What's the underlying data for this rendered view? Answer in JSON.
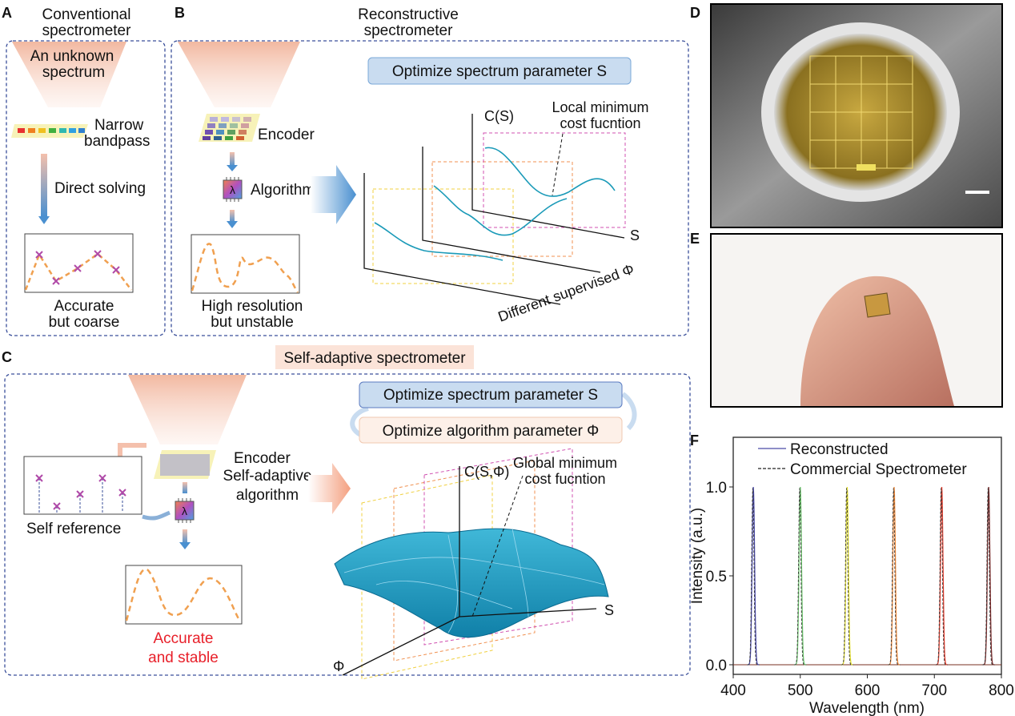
{
  "panels": {
    "A": {
      "letter": "A",
      "title_1": "Conventional",
      "title_2": "spectrometer",
      "source_1": "An unknown",
      "source_2": "spectrum",
      "filter_1": "Narrow",
      "filter_2": "bandpass",
      "step": "Direct solving",
      "result_1": "Accurate",
      "result_2": "but coarse"
    },
    "B": {
      "letter": "B",
      "title_1": "Reconstructive",
      "title_2": "spectrometer",
      "encoder": "Encoder",
      "algorithm": "Algorithm",
      "result_1": "High resolution",
      "result_2": "but unstable",
      "optimize": "Optimize spectrum parameter S",
      "axis_c": "C(S)",
      "axis_s": "S",
      "axis_phi": "Different supervised Φ",
      "note_1": "Local minimum",
      "note_2": "cost fucntion"
    },
    "C": {
      "letter": "C",
      "title": "Self-adaptive spectrometer",
      "encoder": "Encoder",
      "algorithm_1": "Self-adaptive",
      "algorithm_2": "algorithm",
      "reference": "Self reference",
      "result_1": "Accurate",
      "result_2": "and stable",
      "optimize_s": "Optimize spectrum parameter S",
      "optimize_phi": "Optimize algorithm parameter Φ",
      "axis_c": "C(S,Φ)",
      "axis_s": "S",
      "axis_phi": "Φ",
      "note_1": "Global minimum",
      "note_2": "cost fucntion"
    },
    "D": {
      "letter": "D"
    },
    "E": {
      "letter": "E"
    },
    "F": {
      "letter": "F"
    }
  },
  "colors": {
    "accent_blue": "#c9dcf0",
    "accent_peach": "#fbe3d8",
    "dashed_border": "#3a4f9a",
    "result_red": "#e8202a",
    "curve_orange": "#f0a050",
    "marker_purple": "#b04aa8"
  },
  "chart_data": {
    "type": "line",
    "xlabel": "Wavelength (nm)",
    "ylabel": "Intensity (a.u.)",
    "xlim": [
      400,
      800
    ],
    "ylim": [
      -0.05,
      1.28
    ],
    "xticks": [
      "400",
      "500",
      "600",
      "700",
      "800"
    ],
    "yticks": [
      "0.0",
      "0.5",
      "1.0"
    ],
    "legend_position": "top",
    "grid": false,
    "peaks_nm": [
      430,
      500,
      570,
      640,
      711,
      781
    ],
    "peak_colors": [
      "#4a4aa8",
      "#6cc46c",
      "#e4e030",
      "#f08a3a",
      "#e03a2a",
      "#7a2a2a"
    ],
    "peak_height": 1.0,
    "baseline": 0.0,
    "series": [
      {
        "name": "Reconstructed",
        "style": "solid"
      },
      {
        "name": "Commercial Spectrometer",
        "style": "dashed"
      }
    ]
  }
}
